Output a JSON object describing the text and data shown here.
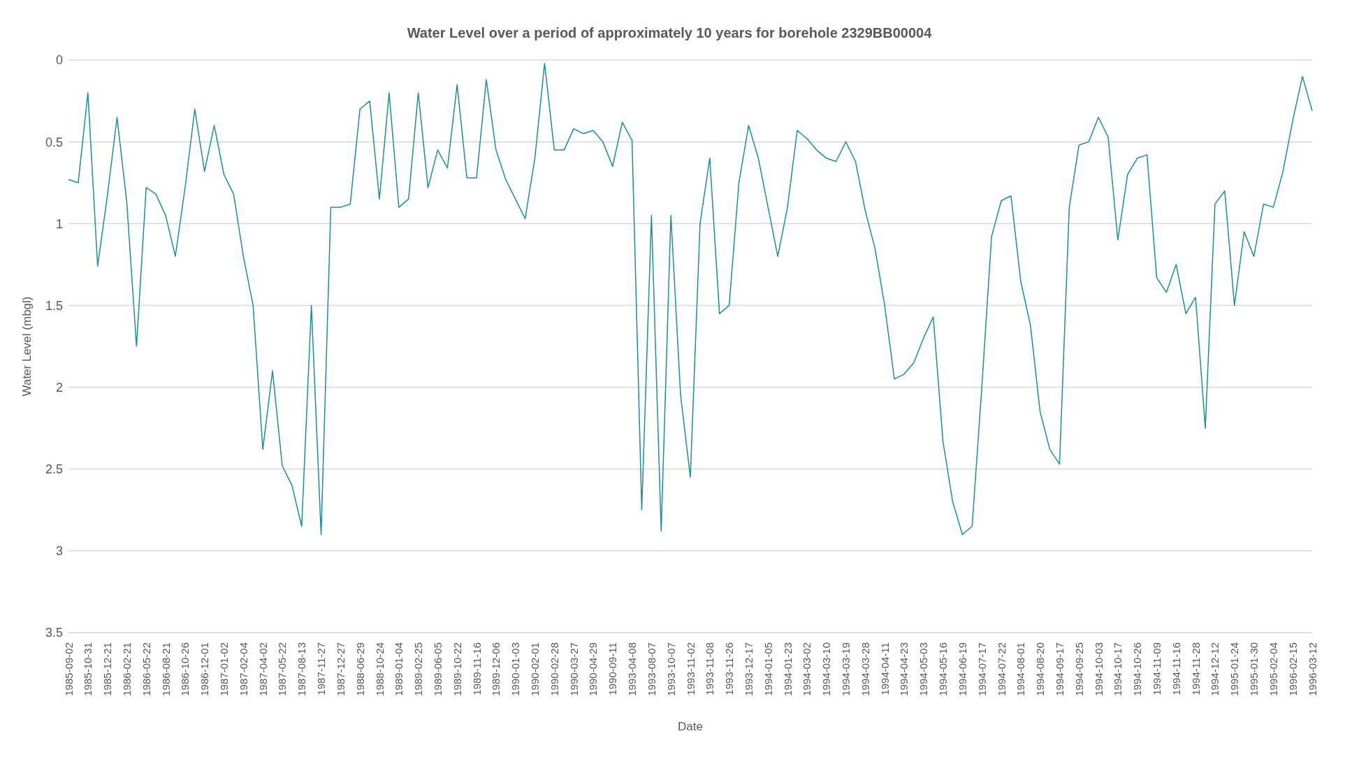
{
  "chart_data": {
    "type": "line",
    "title": "Water Level over a period of approximately 10 years for borehole 2329BB00004",
    "xlabel": "Date",
    "ylabel": "Water Level (mbgl)",
    "categories": [
      "1985-09-02",
      null,
      "1985-10-31",
      null,
      "1985-12-21",
      null,
      "1986-02-21",
      null,
      "1986-05-22",
      null,
      "1986-08-21",
      null,
      "1986-10-26",
      null,
      "1986-12-01",
      null,
      "1987-01-02",
      null,
      "1987-02-04",
      null,
      "1987-04-02",
      null,
      "1987-05-22",
      null,
      "1987-08-13",
      null,
      "1987-11-27",
      null,
      "1987-12-27",
      null,
      "1988-06-29",
      null,
      "1988-10-24",
      null,
      "1989-01-04",
      null,
      "1989-02-25",
      null,
      "1989-06-05",
      null,
      "1989-10-22",
      null,
      "1989-11-16",
      null,
      "1989-12-06",
      null,
      "1990-01-03",
      null,
      "1990-02-01",
      null,
      "1990-02-28",
      null,
      "1990-03-27",
      null,
      "1990-04-29",
      null,
      "1990-09-11",
      null,
      "1993-04-08",
      null,
      "1993-08-07",
      null,
      "1993-10-07",
      null,
      "1993-11-02",
      null,
      "1993-11-08",
      null,
      "1993-11-26",
      null,
      "1993-12-17",
      null,
      "1994-01-05",
      null,
      "1994-01-23",
      null,
      "1994-03-02",
      null,
      "1994-03-10",
      null,
      "1994-03-19",
      null,
      "1994-03-28",
      null,
      "1994-04-11",
      null,
      "1994-04-23",
      null,
      "1994-05-03",
      null,
      "1994-05-16",
      null,
      "1994-06-19",
      null,
      "1994-07-17",
      null,
      "1994-07-22",
      null,
      "1994-08-01",
      null,
      "1994-08-20",
      null,
      "1994-09-17",
      null,
      "1994-09-25",
      null,
      "1994-10-03",
      null,
      "1994-10-17",
      null,
      "1994-10-26",
      null,
      "1994-11-09",
      null,
      "1994-11-16",
      null,
      "1994-11-28",
      null,
      "1994-12-12",
      null,
      "1995-01-24",
      null,
      "1995-01-30",
      null,
      "1995-02-04",
      null,
      "1996-02-15",
      null,
      "1996-03-12"
    ],
    "series": [
      {
        "color": "#1b8fa0",
        "values": [
          0.73,
          0.75,
          0.2,
          1.26,
          0.83,
          0.35,
          0.87,
          1.75,
          0.78,
          0.82,
          0.95,
          1.2,
          0.78,
          0.3,
          0.68,
          0.4,
          0.7,
          0.82,
          1.2,
          1.5,
          2.38,
          1.9,
          2.48,
          2.6,
          2.85,
          1.5,
          2.9,
          0.9,
          0.9,
          0.88,
          0.3,
          0.25,
          0.85,
          0.2,
          0.9,
          0.85,
          0.2,
          0.78,
          0.55,
          0.66,
          0.15,
          0.72,
          0.72,
          0.12,
          0.55,
          0.73,
          0.85,
          0.97,
          0.6,
          0.02,
          0.55,
          0.55,
          0.42,
          0.45,
          0.43,
          0.5,
          0.65,
          0.38,
          0.49,
          2.75,
          0.95,
          2.88,
          0.95,
          2.05,
          2.55,
          1.0,
          0.6,
          1.55,
          1.5,
          0.75,
          0.4,
          0.6,
          0.9,
          1.2,
          0.9,
          0.43,
          0.48,
          0.55,
          0.6,
          0.62,
          0.5,
          0.62,
          0.92,
          1.15,
          1.5,
          1.95,
          1.92,
          1.85,
          1.7,
          1.57,
          2.33,
          2.7,
          2.9,
          2.85,
          2.0,
          1.08,
          0.86,
          0.83,
          1.35,
          1.62,
          2.15,
          2.38,
          2.47,
          0.9,
          0.52,
          0.5,
          0.35,
          0.47,
          1.1,
          0.7,
          0.6,
          0.58,
          1.33,
          1.42,
          1.25,
          1.55,
          1.45,
          2.25,
          0.88,
          0.8,
          1.5,
          1.05,
          1.2,
          0.88,
          0.9,
          0.68,
          0.37,
          0.1,
          0.31
        ]
      }
    ],
    "ylim": [
      3.5,
      0
    ],
    "yticks": [
      0,
      0.5,
      1,
      1.5,
      2,
      2.5,
      3,
      3.5
    ],
    "grid": "y",
    "legend": false,
    "marker": "none",
    "line_style": "solid"
  }
}
